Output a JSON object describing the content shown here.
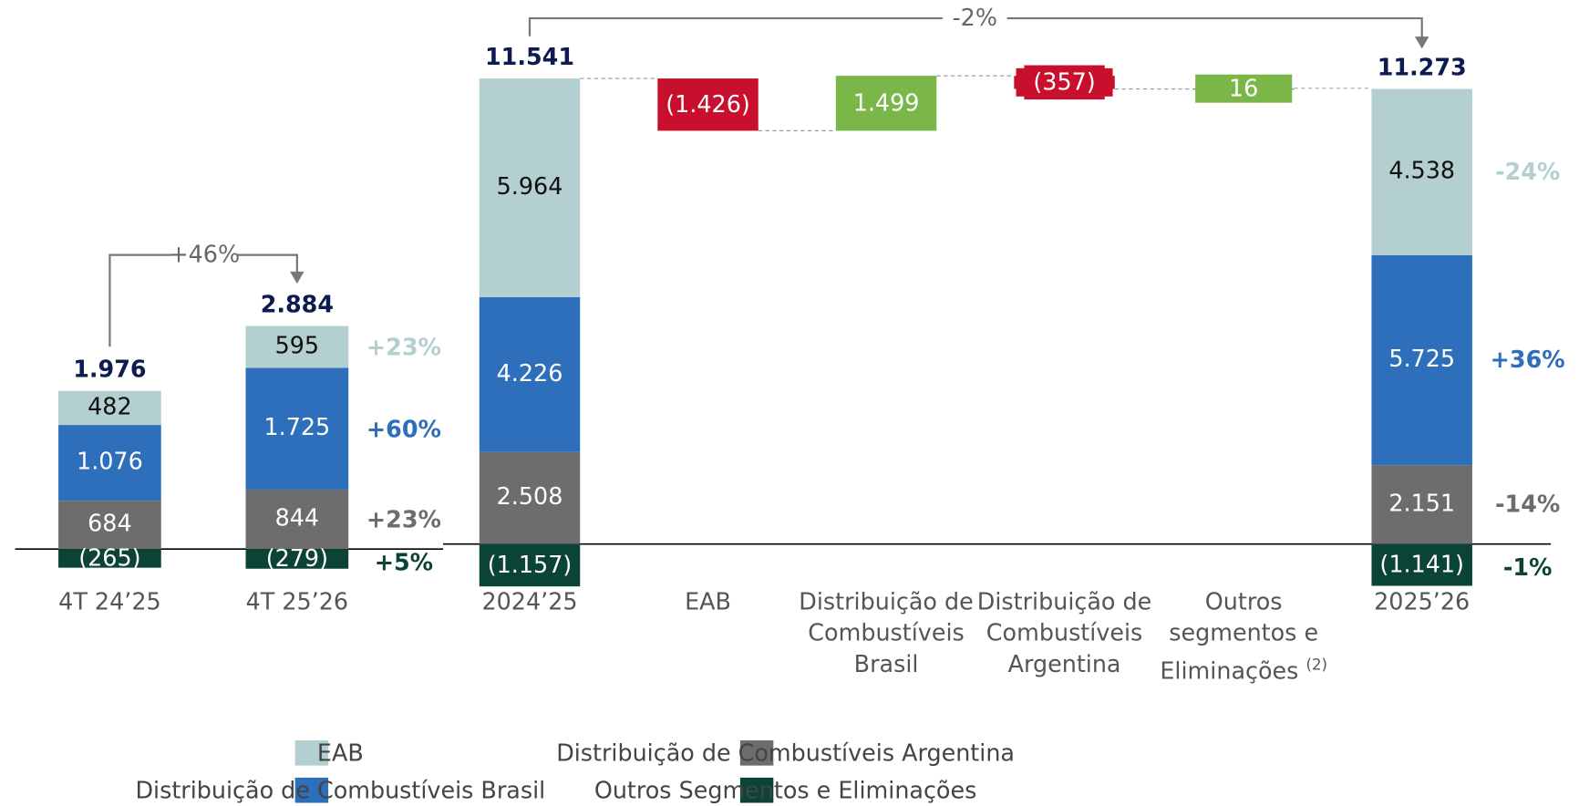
{
  "chart_data": [
    {
      "type": "stacked_bar",
      "categories": [
        "4T 24’25",
        "4T 25’26"
      ],
      "series": [
        {
          "name": "EAB",
          "color": "#b3cfd0",
          "values": [
            482,
            595
          ],
          "value_labels": [
            "482",
            "595"
          ],
          "change": "+23%"
        },
        {
          "name": "Distribuição de Combustíveis Brasil",
          "color": "#2e6fbb",
          "values": [
            1076,
            1725
          ],
          "value_labels": [
            "1.076",
            "1.725"
          ],
          "change": "+60%"
        },
        {
          "name": "Distribuição de Combustíveis Argentina",
          "color": "#6d6d6d",
          "values": [
            684,
            844
          ],
          "value_labels": [
            "684",
            "844"
          ],
          "change": "+23%"
        },
        {
          "name": "Outros Segmentos e Eliminações",
          "color": "#0b4336",
          "values": [
            -265,
            -279
          ],
          "value_labels": [
            "(265)",
            "(279)"
          ],
          "change": "+5%"
        }
      ],
      "totals": {
        "values": [
          1976,
          2884
        ],
        "value_labels": [
          "1.976",
          "2.884"
        ]
      },
      "comparison": "+46%"
    },
    {
      "type": "waterfall",
      "categories": [
        "2024’25",
        "EAB",
        "Distribuição de Combustíveis Brasil",
        "Distribuição de Combustíveis Argentina",
        "Outros segmentos e Eliminações",
        "2025’26"
      ],
      "category_notes": {
        "4": "(2)"
      },
      "series": [
        {
          "color": "#b3cfd0",
          "values": [
            5964,
            null,
            null,
            null,
            null,
            4538
          ],
          "value_labels": [
            "5.964",
            null,
            null,
            null,
            null,
            "4.538"
          ],
          "change": "-24%"
        },
        {
          "color": "#2e6fbb",
          "values": [
            4226,
            null,
            null,
            null,
            null,
            5725
          ],
          "value_labels": [
            "4.226",
            null,
            null,
            null,
            null,
            "5.725"
          ],
          "change": "+36%"
        },
        {
          "color": "#6d6d6d",
          "values": [
            2508,
            null,
            null,
            null,
            null,
            2151
          ],
          "value_labels": [
            "2.508",
            null,
            null,
            null,
            null,
            "2.151"
          ],
          "change": "-14%"
        },
        {
          "color": "#0b4336",
          "values": [
            -1157,
            null,
            null,
            null,
            null,
            -1141
          ],
          "value_labels": [
            "(1.157)",
            null,
            null,
            null,
            null,
            "(1.141)"
          ],
          "change": "-1%"
        }
      ],
      "steps": {
        "values": [
          null,
          -1426,
          1499,
          -357,
          16,
          null
        ],
        "value_labels": [
          null,
          "(1.426)",
          "1.499",
          "(357)",
          "16",
          null
        ],
        "colors": {
          "negative": "#c8102e",
          "positive": "#7ab648"
        }
      },
      "totals": {
        "values": [
          11541,
          null,
          null,
          null,
          null,
          11273
        ],
        "value_labels": [
          "11.541",
          null,
          null,
          null,
          null,
          "11.273"
        ]
      },
      "comparison": "-2%"
    }
  ]
}
